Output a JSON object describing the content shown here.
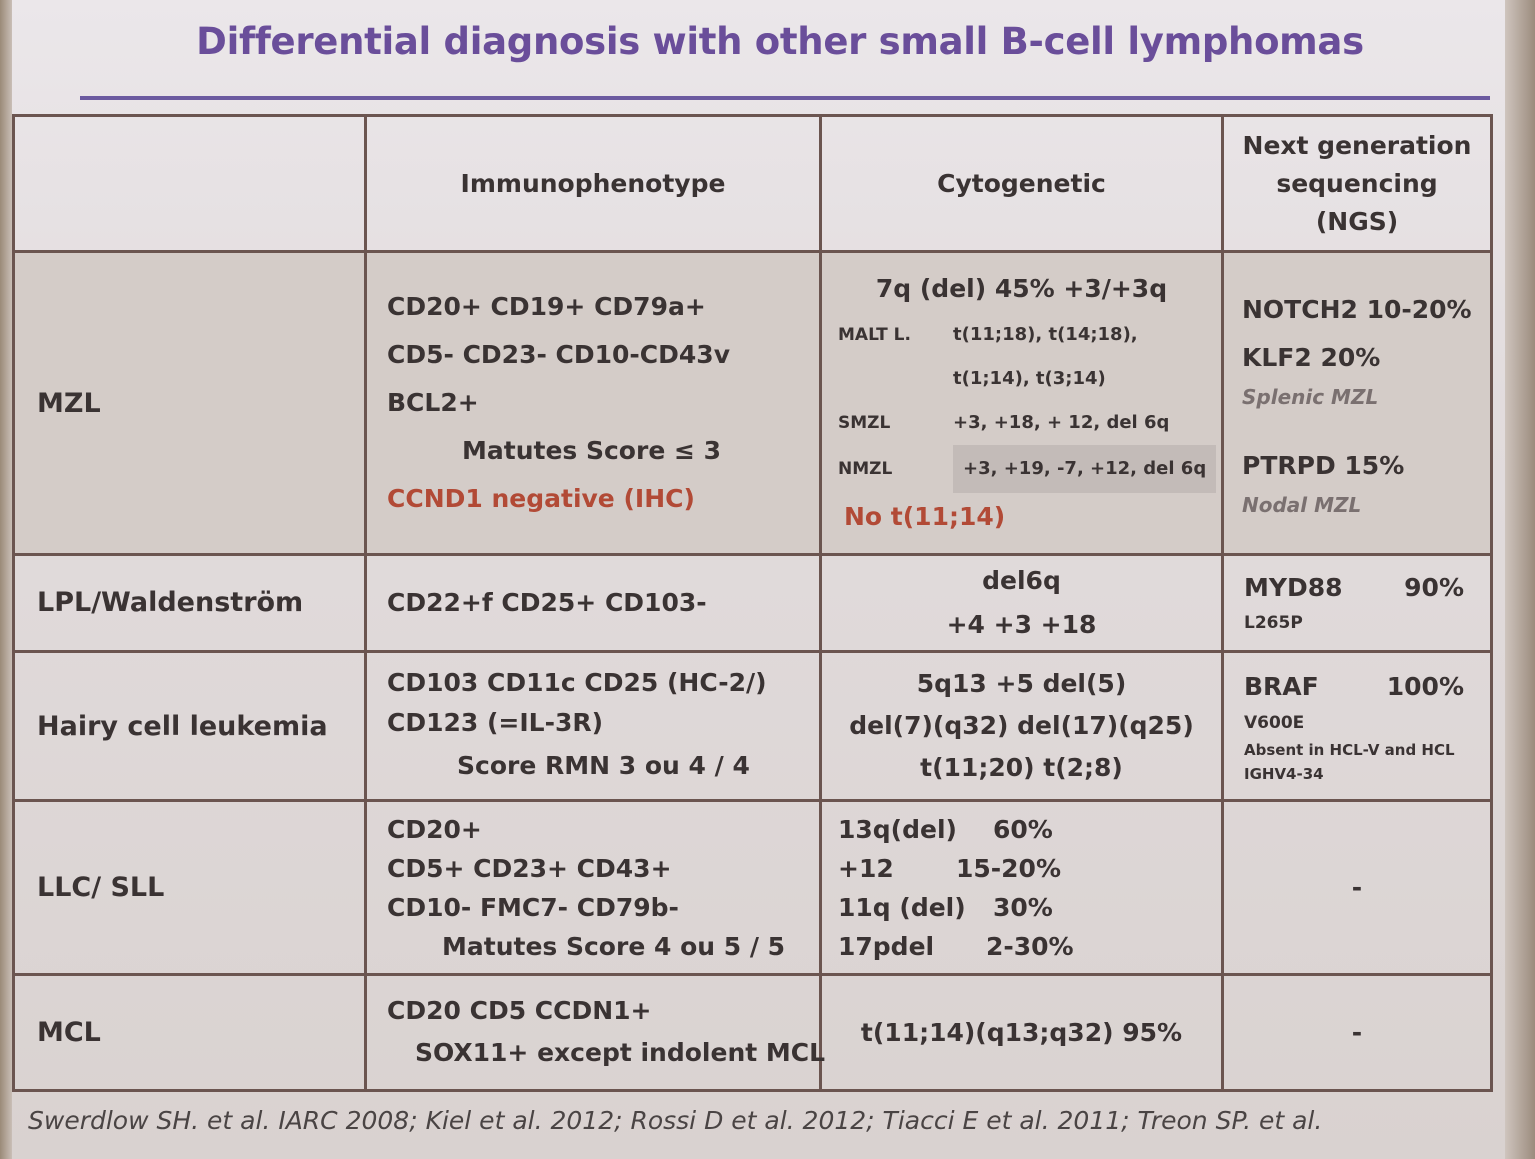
{
  "title": "Differential diagnosis with other small B-cell lymphomas",
  "header": {
    "col1": "",
    "col2": "Immunophenotype",
    "col3": "Cytogenetic",
    "col4_l1": "Next generation",
    "col4_l2": "sequencing",
    "col4_l3": "(NGS)"
  },
  "rows": {
    "mzl": {
      "label": "MZL",
      "immuno": [
        "CD20+ CD19+ CD79a+",
        "CD5- CD23- CD10-CD43v",
        "BCL2+",
        "Matutes Score ≤ 3",
        "CCND1 negative (IHC)"
      ],
      "cyto_head": "7q (del) 45%    +3/+3q",
      "cyto": [
        {
          "k": "MALT L.",
          "v": "t(11;18), t(14;18),"
        },
        {
          "k": "",
          "v": "t(1;14),  t(3;14)"
        },
        {
          "k": "SMZL",
          "v": "+3, +18, + 12, del 6q"
        },
        {
          "k": "NMZL",
          "v": "+3, +19, -7, +12, del 6q"
        }
      ],
      "cyto_tail": "No t(11;14)",
      "ngs": [
        "NOTCH2  10-20%",
        "KLF2 20%",
        "Splenic MZL",
        "PTRPD 15%",
        "Nodal MZL"
      ]
    },
    "lpl": {
      "label": "LPL/Waldenström",
      "immuno": "CD22+f CD25+ CD103-",
      "cyto": [
        "del6q",
        "+4 +3 +18"
      ],
      "ngs_gene": "MYD88",
      "ngs_pct": "90%",
      "ngs_sub": "L265P"
    },
    "hcl": {
      "label": "Hairy cell leukemia",
      "immuno": [
        "CD103  CD11c  CD25  (HC-2/)",
        "CD123 (=IL-3R)",
        "Score RMN 3 ou 4 / 4"
      ],
      "cyto": [
        "5q13 +5 del(5)",
        "del(7)(q32) del(17)(q25)",
        "t(11;20) t(2;8)"
      ],
      "ngs_gene": "BRAF",
      "ngs_pct": "100%",
      "ngs_sub": "V600E",
      "ngs_note1": "Absent in HCL-V and HCL",
      "ngs_note2": "IGHV4-34"
    },
    "llc": {
      "label": "LLC/ SLL",
      "immuno": [
        "CD20+",
        "CD5+ CD23+ CD43+",
        "CD10- FMC7- CD79b-",
        "Matutes Score 4 ou 5 / 5"
      ],
      "cyto": [
        {
          "k": "13q(del)",
          "v": "60%"
        },
        {
          "k": "+12",
          "v": "15-20%"
        },
        {
          "k": "11q (del)",
          "v": "30%"
        },
        {
          "k": "17pdel",
          "v": "2-30%"
        }
      ],
      "ngs": "-"
    },
    "mcl": {
      "label": "MCL",
      "immuno": [
        "CD20 CD5 CCDN1+",
        "SOX11+ except indolent MCL"
      ],
      "cyto": "t(11;14)(q13;q32) 95%",
      "ngs": "-"
    }
  },
  "citation": "Swerdlow SH. et al. IARC 2008; Kiel et al. 2012; Rossi D et al. 2012; Tiacci E et al. 2011; Treon SP. et al."
}
